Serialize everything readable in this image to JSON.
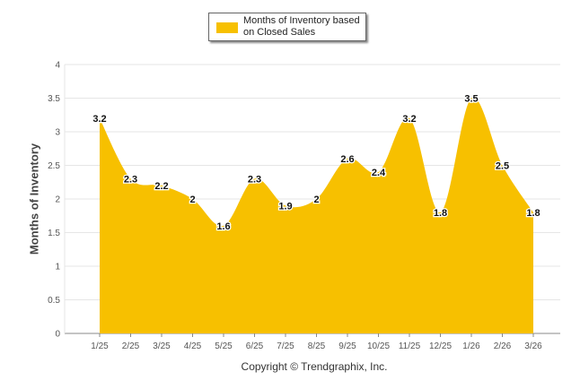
{
  "legend": {
    "label": "Months of Inventory based on Closed Sales"
  },
  "copyright": "Copyright © Trendgraphix, Inc.",
  "colors": {
    "area": "#F7C000",
    "grid": "#E6E6E6",
    "axis": "#888888",
    "text": "#444444"
  },
  "chart_data": {
    "type": "area",
    "categories": [
      "1/25",
      "2/25",
      "3/25",
      "4/25",
      "5/25",
      "6/25",
      "7/25",
      "8/25",
      "9/25",
      "10/25",
      "11/25",
      "12/25",
      "1/26",
      "2/26",
      "3/26"
    ],
    "series": [
      {
        "name": "Months of Inventory based on Closed Sales",
        "values": [
          3.2,
          2.3,
          2.2,
          2,
          1.6,
          2.3,
          1.9,
          2,
          2.6,
          2.4,
          3.2,
          1.8,
          3.5,
          2.5,
          1.8
        ]
      }
    ],
    "data_labels": [
      "3.2",
      "2.3",
      "2.2",
      "2",
      "1.6",
      "2.3",
      "1.9",
      "2",
      "2.6",
      "2.4",
      "3.2",
      "1.8",
      "3.5",
      "2.5",
      "1.8"
    ],
    "yticks": [
      "0",
      "0.5",
      "1",
      "1.5",
      "2",
      "2.5",
      "3",
      "3.5",
      "4"
    ],
    "ylim": [
      0,
      4
    ],
    "ylabel": "Months of Inventory",
    "xlabel": "",
    "grid": true,
    "legend_position": "top-center"
  }
}
